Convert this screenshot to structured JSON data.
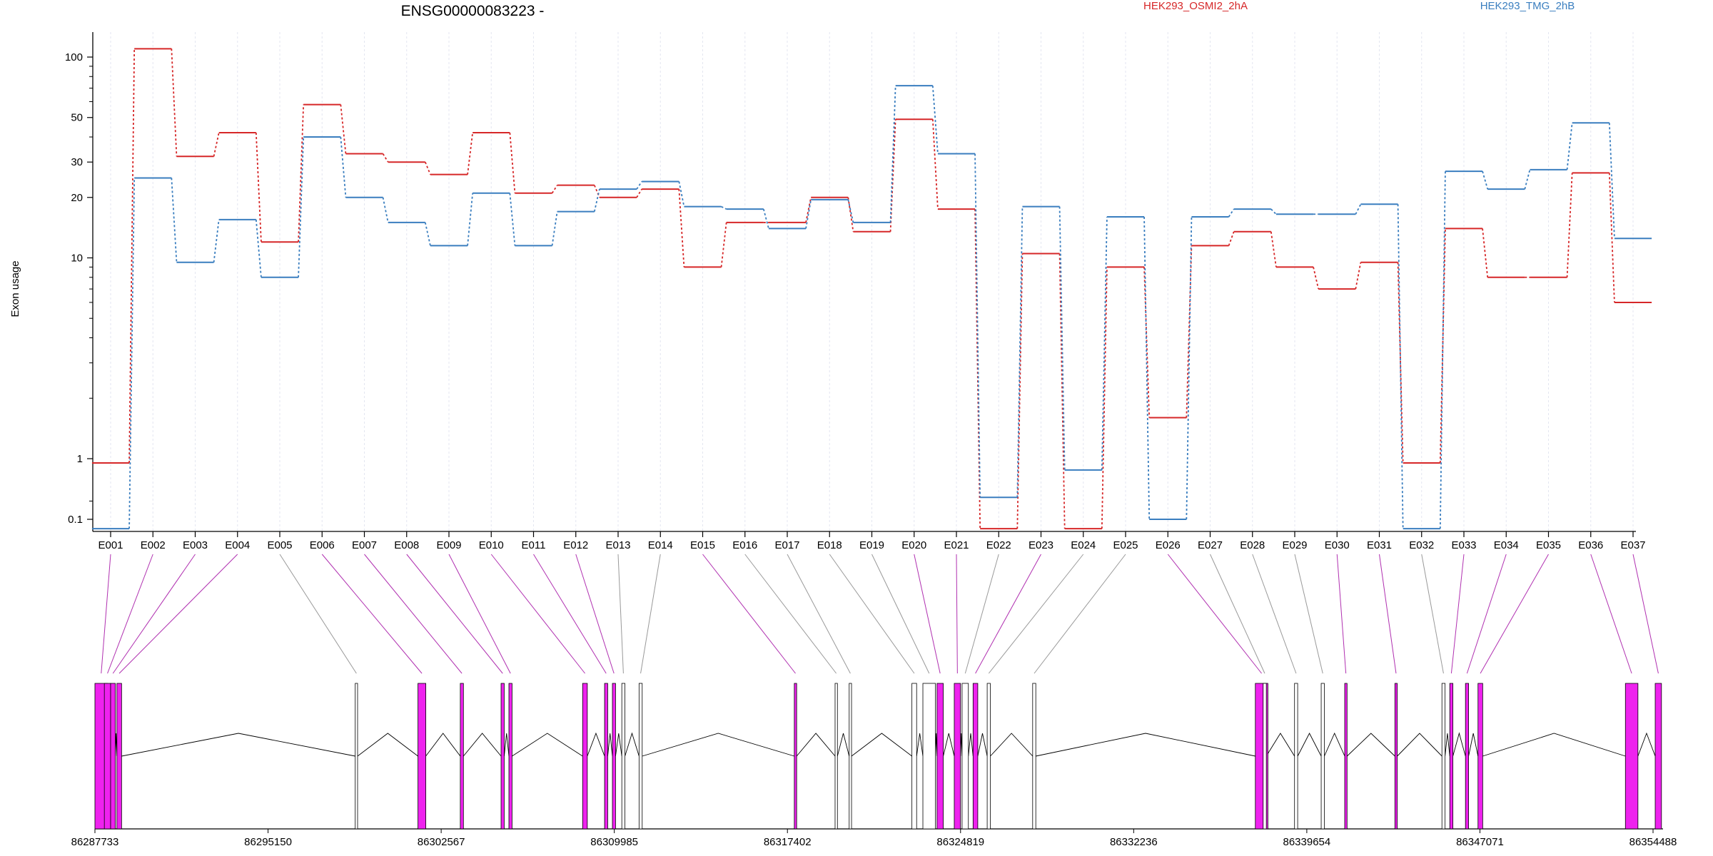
{
  "chart_data": {
    "type": "line",
    "title": "ENSG00000083223 -",
    "ylabel": "Exon usage",
    "xlabel": "",
    "y_scale": "log-like",
    "y_ticks": [
      0.1,
      1,
      10,
      20,
      30,
      50,
      100
    ],
    "y_tick_labels": [
      "0.1",
      "1",
      "10",
      "20",
      "30",
      "50",
      "100"
    ],
    "grid": "vertical dotted lines at exon positions",
    "legend_placement": "top-right",
    "categories": [
      "E001",
      "E002",
      "E003",
      "E004",
      "E005",
      "E006",
      "E007",
      "E008",
      "E009",
      "E010",
      "E011",
      "E012",
      "E013",
      "E014",
      "E015",
      "E016",
      "E017",
      "E018",
      "E019",
      "E020",
      "E021",
      "E022",
      "E023",
      "E024",
      "E025",
      "E026",
      "E027",
      "E028",
      "E029",
      "E030",
      "E031",
      "E032",
      "E033",
      "E034",
      "E035",
      "E036",
      "E037"
    ],
    "series": [
      {
        "name": "HEK293_OSMI2_2hA",
        "color": "#d62728",
        "values": [
          0.85,
          110,
          32,
          42,
          12,
          58,
          33,
          30,
          26,
          42,
          21,
          23,
          20,
          22,
          9,
          15,
          15,
          20,
          13.5,
          49,
          17.5,
          0.07,
          10.5,
          0.07,
          9,
          1.6,
          11.5,
          13.5,
          9,
          7,
          9.5,
          0.85,
          14,
          8,
          8,
          26.5,
          6
        ]
      },
      {
        "name": "HEK293_TMG_2hB",
        "color": "#3a7ebf",
        "values": [
          0.07,
          25,
          9.5,
          15.5,
          8,
          40,
          20,
          15,
          11.5,
          21,
          11.5,
          17,
          22,
          24,
          18,
          17.5,
          14,
          19.5,
          15,
          72,
          33,
          0.23,
          18,
          0.65,
          16,
          0.1,
          16,
          17.5,
          16.5,
          16.5,
          18.5,
          0.07,
          27,
          22,
          27.5,
          47,
          12.5
        ]
      }
    ],
    "genomic_axis": {
      "tick_labels": [
        "86287733",
        "86295150",
        "86302567",
        "86309985",
        "86317402",
        "86324819",
        "86332236",
        "86339654",
        "86347071",
        "86354488"
      ]
    },
    "gene_model": {
      "highlight_color": "#ee22ee",
      "intron_color": "#000000",
      "exons": [
        {
          "id": "E001",
          "highlight": true
        },
        {
          "id": "E002",
          "highlight": true
        },
        {
          "id": "E003",
          "highlight": true
        },
        {
          "id": "E004",
          "highlight": true
        },
        {
          "id": "E005",
          "highlight": false
        },
        {
          "id": "E006",
          "highlight": true
        },
        {
          "id": "E007",
          "highlight": true
        },
        {
          "id": "E008",
          "highlight": true
        },
        {
          "id": "E009",
          "highlight": true
        },
        {
          "id": "E010",
          "highlight": true
        },
        {
          "id": "E011",
          "highlight": true
        },
        {
          "id": "E012",
          "highlight": true
        },
        {
          "id": "E013",
          "highlight": false
        },
        {
          "id": "E014",
          "highlight": false
        },
        {
          "id": "E015",
          "highlight": true
        },
        {
          "id": "E016",
          "highlight": false
        },
        {
          "id": "E017",
          "highlight": false
        },
        {
          "id": "E018",
          "highlight": false
        },
        {
          "id": "E019",
          "highlight": false
        },
        {
          "id": "E020",
          "highlight": true
        },
        {
          "id": "E021",
          "highlight": true
        },
        {
          "id": "E022",
          "highlight": false
        },
        {
          "id": "E023",
          "highlight": true
        },
        {
          "id": "E024",
          "highlight": false
        },
        {
          "id": "E025",
          "highlight": false
        },
        {
          "id": "E026",
          "highlight": true
        },
        {
          "id": "E027",
          "highlight": false
        },
        {
          "id": "E028",
          "highlight": false
        },
        {
          "id": "E029",
          "highlight": false
        },
        {
          "id": "E030",
          "highlight": true
        },
        {
          "id": "E031",
          "highlight": true
        },
        {
          "id": "E032",
          "highlight": false
        },
        {
          "id": "E033",
          "highlight": true
        },
        {
          "id": "E034",
          "highlight": true
        },
        {
          "id": "E035",
          "highlight": true
        },
        {
          "id": "E036",
          "highlight": true
        },
        {
          "id": "E037",
          "highlight": true
        }
      ]
    }
  }
}
